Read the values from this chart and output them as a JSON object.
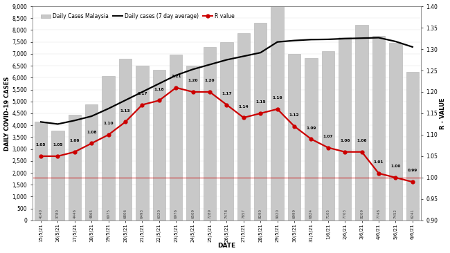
{
  "dates": [
    "15/5/21",
    "16/5/21",
    "17/5/21",
    "18/5/21",
    "19/5/21",
    "20/5/21",
    "21/5/21",
    "22/5/21",
    "23/5/21",
    "24/5/21",
    "25/5/21",
    "26/5/21",
    "27/5/21",
    "28/5/21",
    "29/5/21",
    "30/5/21",
    "31/5/21",
    "1/6/21",
    "2/6/21",
    "3/6/21",
    "4/6/21",
    "5/6/21",
    "6/6/21"
  ],
  "daily_cases": [
    4140,
    3780,
    4446,
    4865,
    6075,
    6806,
    6493,
    6320,
    6976,
    6509,
    7289,
    7478,
    7857,
    8290,
    9020,
    6999,
    6824,
    7105,
    7703,
    8209,
    7748,
    7452,
    6241
  ],
  "avg_7day": [
    4140,
    4050,
    4200,
    4380,
    4700,
    5050,
    5400,
    5750,
    6100,
    6350,
    6550,
    6750,
    6900,
    7050,
    7500,
    7560,
    7600,
    7610,
    7640,
    7660,
    7680,
    7520,
    7290
  ],
  "r_values": [
    1.05,
    1.05,
    1.06,
    1.08,
    1.1,
    1.13,
    1.17,
    1.18,
    1.21,
    1.2,
    1.2,
    1.17,
    1.14,
    1.15,
    1.16,
    1.12,
    1.09,
    1.07,
    1.06,
    1.06,
    1.01,
    1.0,
    0.99
  ],
  "bar_color": "#c8c8c8",
  "bar_edgecolor": "#b0b0b0",
  "avg_line_color": "#000000",
  "r_line_color": "#cc0000",
  "r_marker_color": "#cc0000",
  "hline_color": "#cc0000",
  "hline_y": 1.0,
  "ylabel_left": "DAILY COVID-19 CASES",
  "ylabel_right": "R - VALUE",
  "xlabel": "DATE",
  "ylim_left": [
    0,
    9000
  ],
  "ylim_right": [
    0.9,
    1.4
  ],
  "yticks_left": [
    0,
    500,
    1000,
    1500,
    2000,
    2500,
    3000,
    3500,
    4000,
    4500,
    5000,
    5500,
    6000,
    6500,
    7000,
    7500,
    8000,
    8500,
    9000
  ],
  "yticks_right": [
    0.9,
    0.95,
    1.0,
    1.05,
    1.1,
    1.15,
    1.2,
    1.25,
    1.3,
    1.35,
    1.4
  ],
  "legend_labels": [
    "Daily Cases Malaysia",
    "Daily cases (7 day average)",
    "R value"
  ],
  "bg_color": "#ffffff"
}
